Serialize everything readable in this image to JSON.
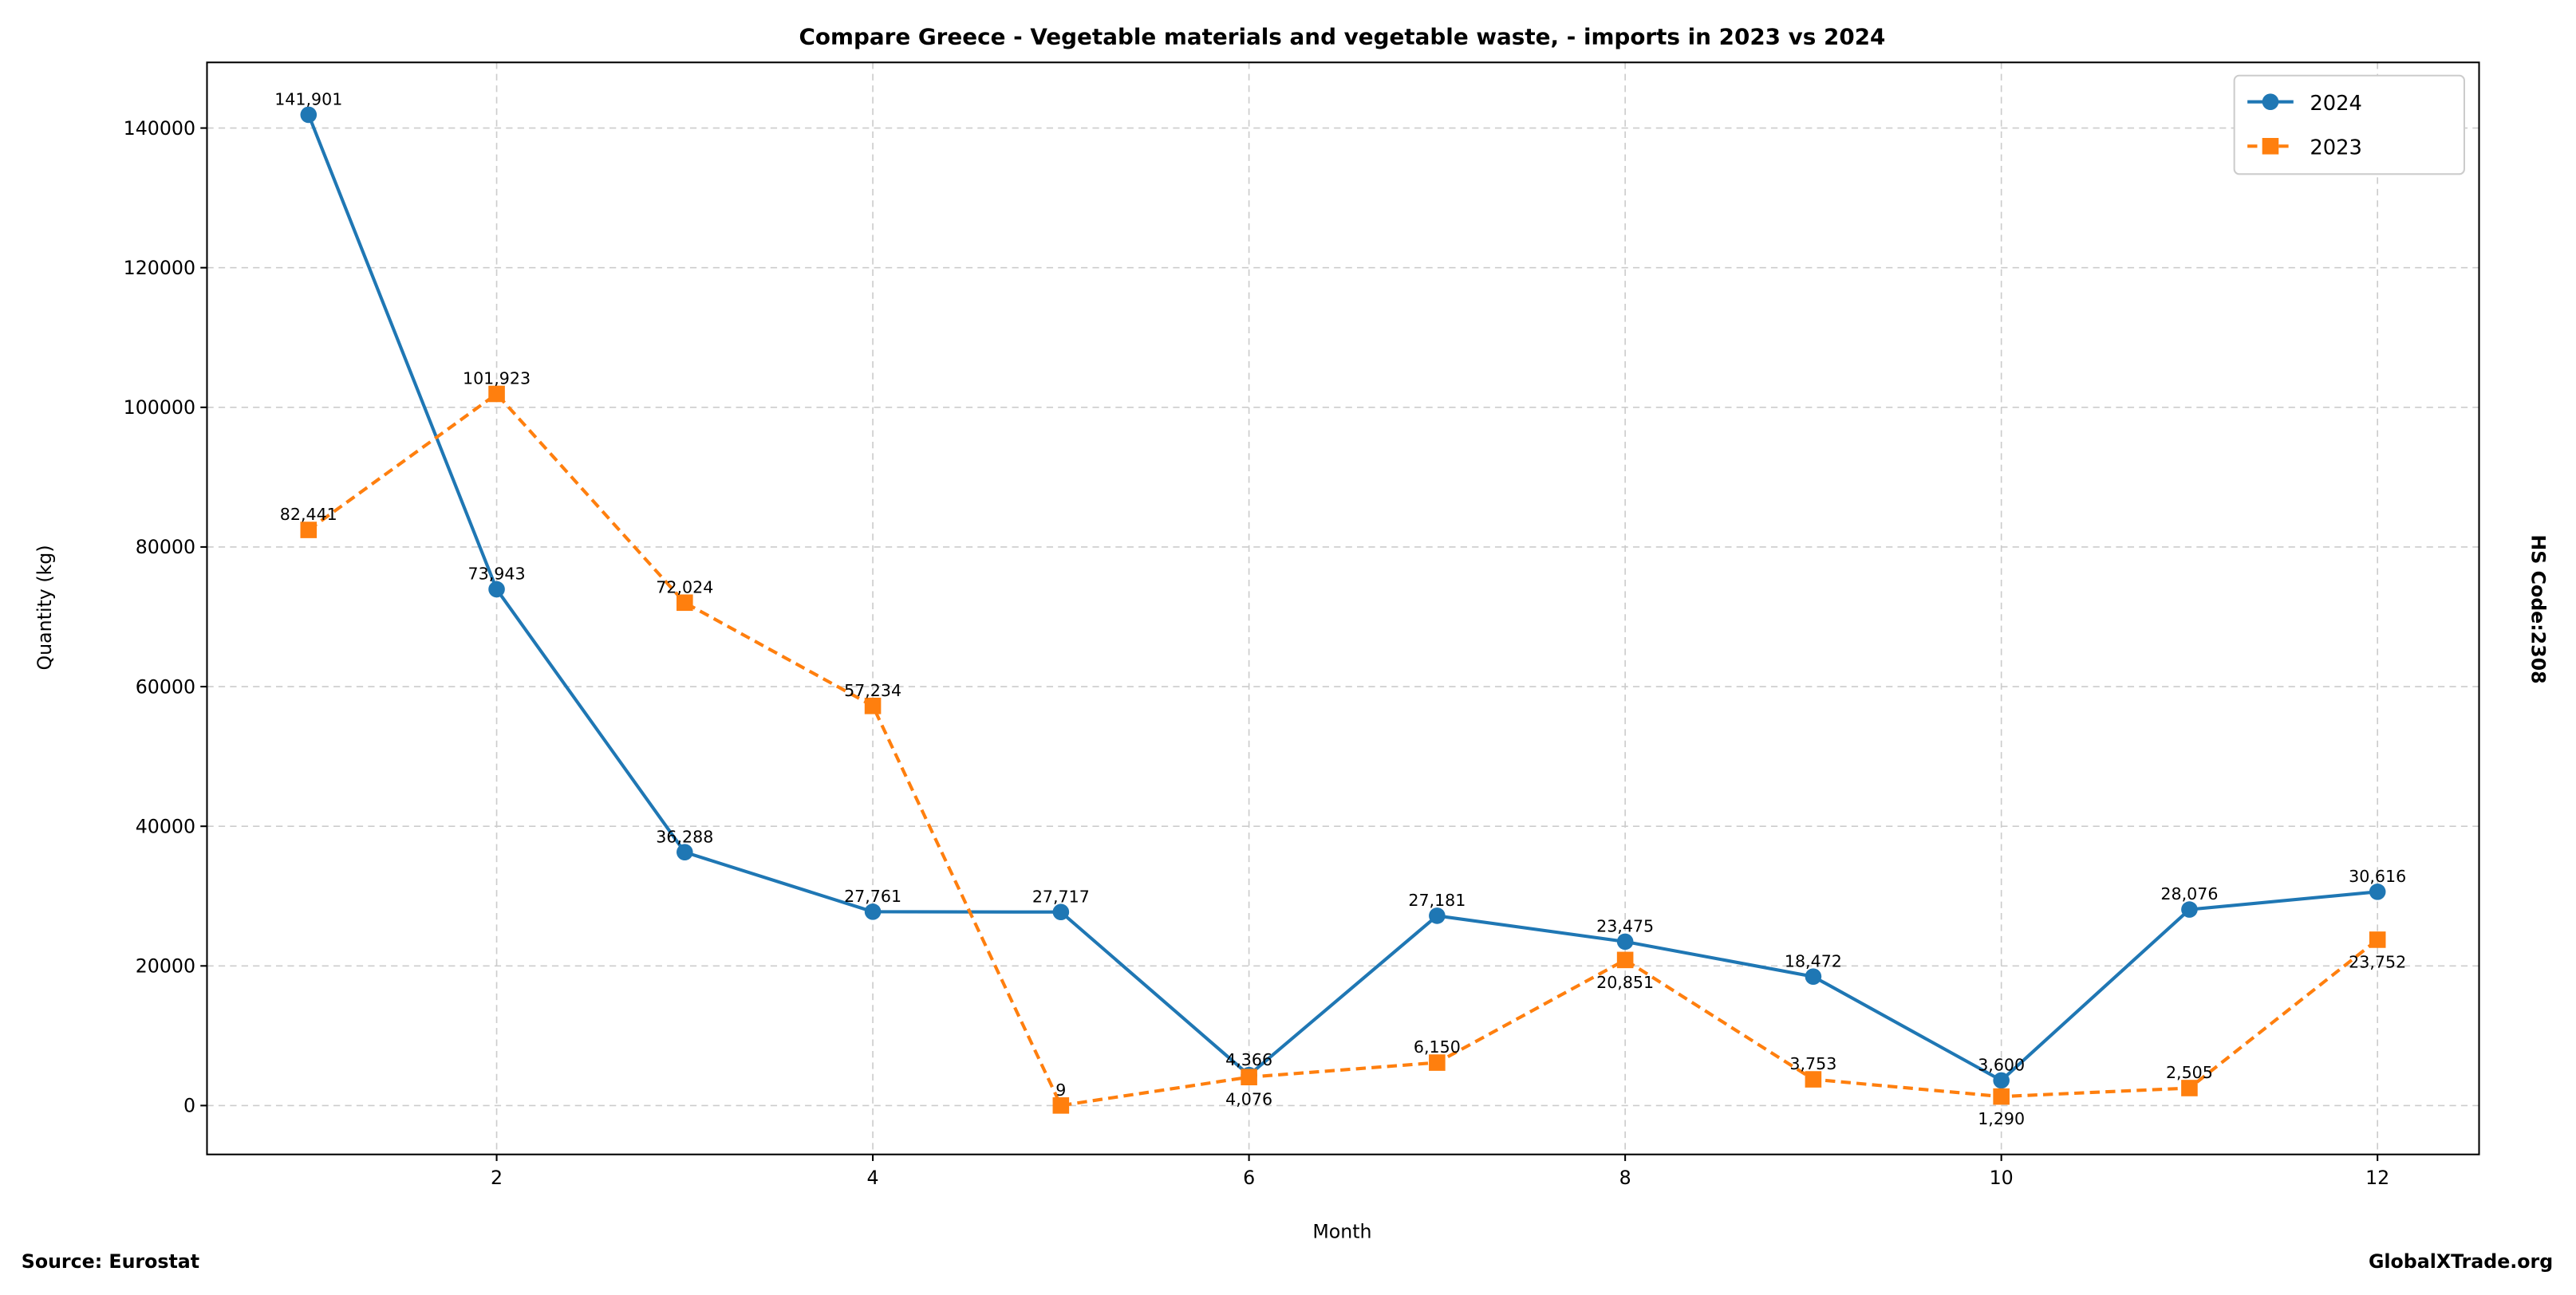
{
  "chart_data": {
    "type": "line",
    "title": "Compare Greece - Vegetable materials and vegetable waste, - imports in 2023 vs 2024",
    "xlabel": "Month",
    "ylabel": "Quantity (kg)",
    "right_label": "HS Code:2308",
    "source": "Source: Eurostat",
    "watermark": "GlobalXTrade.org",
    "xlim": [
      0.46,
      12.54
    ],
    "ylim": [
      -7000,
      149400
    ],
    "x_ticks": [
      2,
      4,
      6,
      8,
      10,
      12
    ],
    "y_ticks": [
      0,
      20000,
      40000,
      60000,
      80000,
      100000,
      120000,
      140000
    ],
    "grid": true,
    "legend_position": "top-right",
    "x": [
      1,
      2,
      3,
      4,
      5,
      6,
      7,
      8,
      9,
      10,
      11,
      12
    ],
    "series": [
      {
        "name": "2024",
        "color": "#1f77b4",
        "marker": "circle",
        "dash": false,
        "values": [
          141901,
          73943,
          36288,
          27761,
          27717,
          4366,
          27181,
          23475,
          18472,
          3600,
          28076,
          30616
        ],
        "labels": [
          "141,901",
          "73,943",
          "36,288",
          "27,761",
          "27,717",
          "4,366",
          "27,181",
          "23,475",
          "18,472",
          "3,600",
          "28,076",
          "30,616"
        ]
      },
      {
        "name": "2023",
        "color": "#ff7f0e",
        "marker": "square",
        "dash": true,
        "values": [
          82441,
          101923,
          72024,
          57234,
          9,
          4076,
          6150,
          20851,
          3753,
          1290,
          2505,
          23752
        ],
        "labels": [
          "82,441",
          "101,923",
          "72,024",
          "57,234",
          "9",
          "4,076",
          "6,150",
          "20,851",
          "3,753",
          "1,290",
          "2,505",
          "23,752"
        ]
      }
    ]
  }
}
